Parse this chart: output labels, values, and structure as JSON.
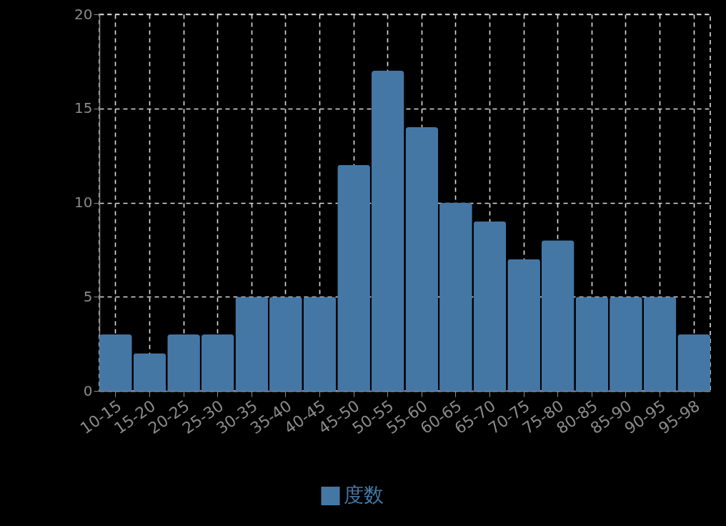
{
  "chart_data": {
    "type": "bar",
    "categories": [
      "10-15",
      "15-20",
      "20-25",
      "25-30",
      "30-35",
      "35-40",
      "40-45",
      "45-50",
      "50-55",
      "55-60",
      "60-65",
      "65-70",
      "70-75",
      "75-80",
      "80-85",
      "85-90",
      "90-95",
      "95-98"
    ],
    "series": [
      {
        "name": "度数",
        "color": "#4577a5",
        "values": [
          3,
          2,
          3,
          3,
          5,
          5,
          5,
          12,
          17,
          14,
          10,
          9,
          7,
          8,
          5,
          5,
          5,
          3
        ]
      }
    ],
    "ylim": [
      0,
      20
    ],
    "yticks": [
      0,
      5,
      10,
      15,
      20
    ],
    "grid": true,
    "legend": "bottom"
  }
}
